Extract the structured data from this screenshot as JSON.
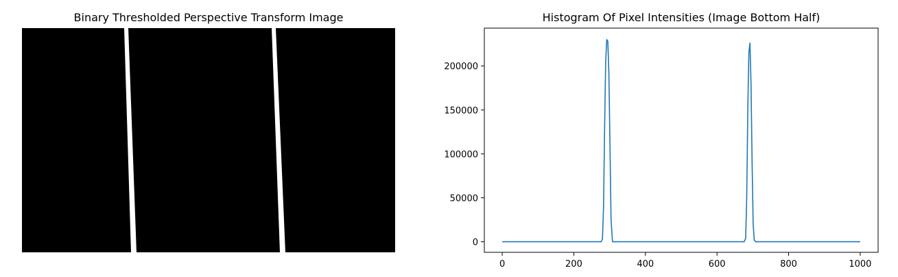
{
  "left_panel": {
    "title": "Binary Thresholded Perspective Transform Image"
  },
  "chart_data": {
    "type": "line",
    "title": "Histogram Of Pixel Intensities (Image Bottom Half)",
    "xlabel": "",
    "ylabel": "",
    "xlim": [
      -50,
      1050
    ],
    "ylim": [
      -12000,
      243000
    ],
    "xticks": [
      0,
      200,
      400,
      600,
      800,
      1000
    ],
    "yticks": [
      0,
      50000,
      100000,
      150000,
      200000
    ],
    "grid": false,
    "color": "#1f77b4",
    "series": [
      {
        "x": [
          0,
          276,
          280,
          283,
          286,
          289,
          292,
          295,
          298,
          301,
          304,
          308,
          400,
          600,
          676,
          680,
          683,
          686,
          689,
          692,
          695,
          698,
          701,
          704,
          708,
          1000
        ],
        "values": [
          0,
          0,
          3000,
          40000,
          130000,
          205000,
          230000,
          228000,
          190000,
          110000,
          25000,
          0,
          0,
          0,
          0,
          4000,
          50000,
          150000,
          215000,
          226000,
          180000,
          90000,
          20000,
          2000,
          0,
          0
        ]
      }
    ]
  }
}
